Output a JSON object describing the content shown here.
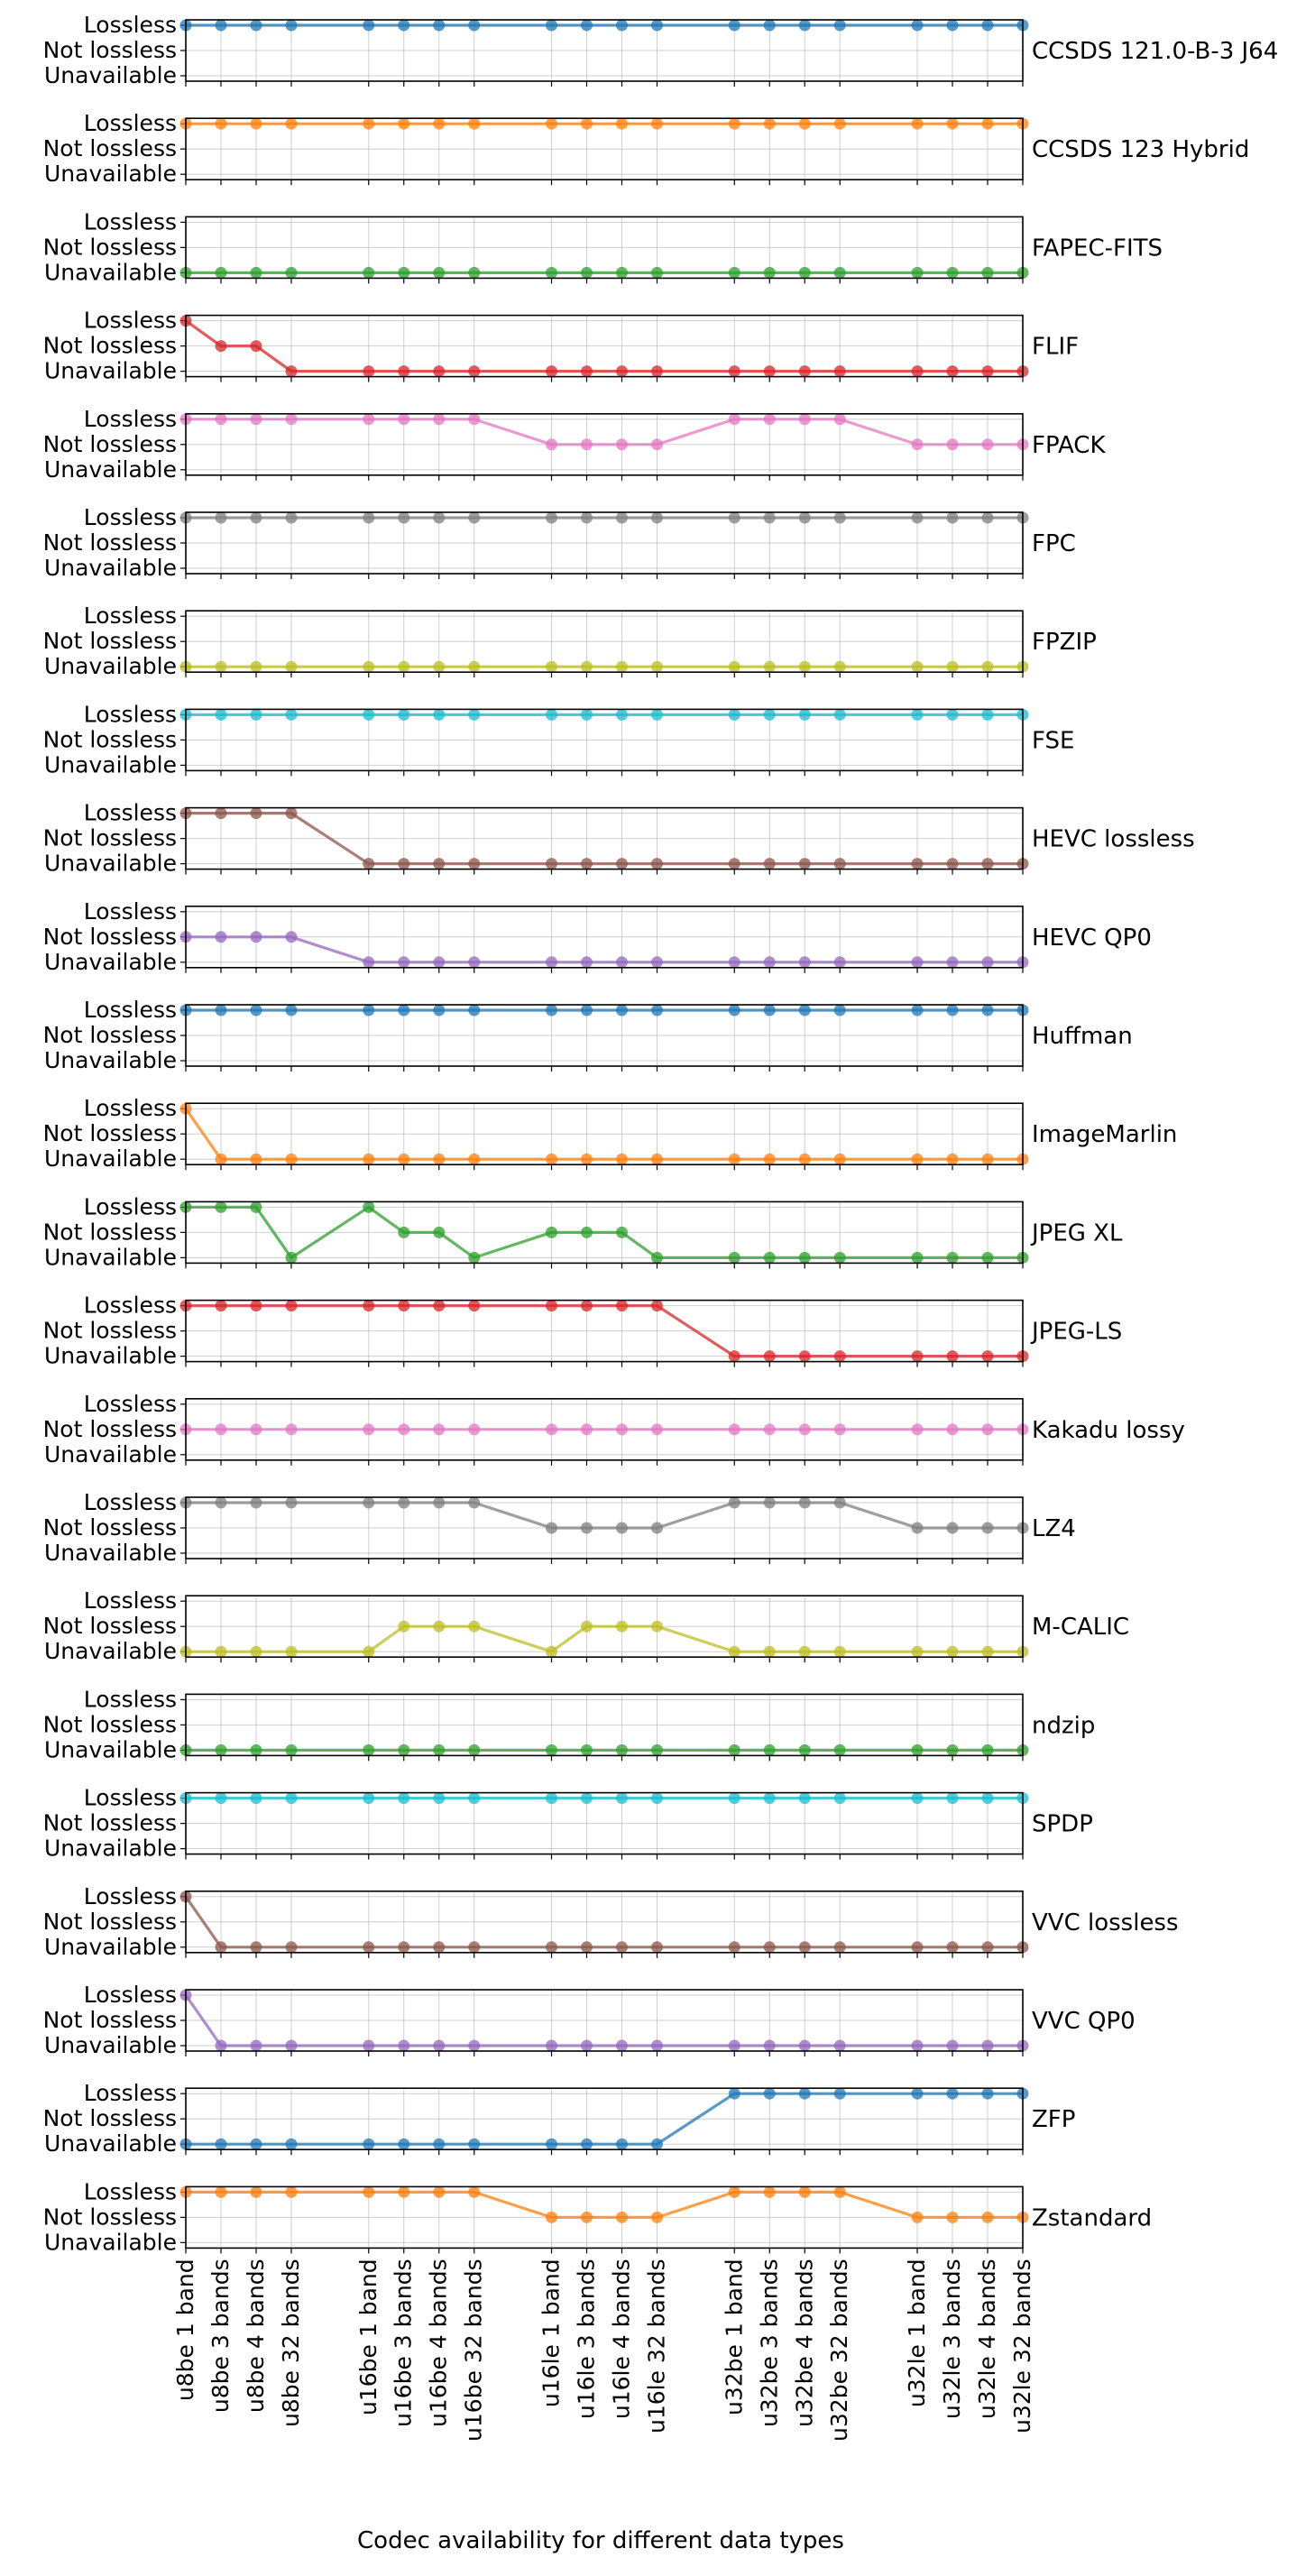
{
  "chart_data": {
    "type": "line",
    "xlabel": "Codec availability for different data types",
    "status_levels": [
      "Unavailable",
      "Not lossless",
      "Lossless"
    ],
    "ylim": [
      0,
      2
    ],
    "grid": true,
    "x": [
      "u8be 1 band",
      "u8be 3 bands",
      "u8be 4 bands",
      "u8be 32 bands",
      "u16be 1 band",
      "u16be 3 bands",
      "u16be 4 bands",
      "u16be 32 bands",
      "u16le 1 band",
      "u16le 3 bands",
      "u16le 4 bands",
      "u16le 32 bands",
      "u32be 1 band",
      "u32be 3 bands",
      "u32be 4 bands",
      "u32be 32 bands",
      "u32le 1 band",
      "u32le 3 bands",
      "u32le 4 bands",
      "u32le 32 bands"
    ],
    "series": [
      {
        "name": "CCSDS 121.0-B-3 J64",
        "color": "#1f77b4",
        "values": [
          2,
          2,
          2,
          2,
          2,
          2,
          2,
          2,
          2,
          2,
          2,
          2,
          2,
          2,
          2,
          2,
          2,
          2,
          2,
          2
        ]
      },
      {
        "name": "CCSDS 123 Hybrid",
        "color": "#ff7f0e",
        "values": [
          2,
          2,
          2,
          2,
          2,
          2,
          2,
          2,
          2,
          2,
          2,
          2,
          2,
          2,
          2,
          2,
          2,
          2,
          2,
          2
        ]
      },
      {
        "name": "FAPEC-FITS",
        "color": "#2ca02c",
        "values": [
          0,
          0,
          0,
          0,
          0,
          0,
          0,
          0,
          0,
          0,
          0,
          0,
          0,
          0,
          0,
          0,
          0,
          0,
          0,
          0
        ]
      },
      {
        "name": "FLIF",
        "color": "#d62728",
        "values": [
          2,
          1,
          1,
          0,
          0,
          0,
          0,
          0,
          0,
          0,
          0,
          0,
          0,
          0,
          0,
          0,
          0,
          0,
          0,
          0
        ]
      },
      {
        "name": "FPACK",
        "color": "#e377c2",
        "values": [
          2,
          2,
          2,
          2,
          2,
          2,
          2,
          2,
          1,
          1,
          1,
          1,
          2,
          2,
          2,
          2,
          1,
          1,
          1,
          1
        ]
      },
      {
        "name": "FPC",
        "color": "#7f7f7f",
        "values": [
          2,
          2,
          2,
          2,
          2,
          2,
          2,
          2,
          2,
          2,
          2,
          2,
          2,
          2,
          2,
          2,
          2,
          2,
          2,
          2
        ]
      },
      {
        "name": "FPZIP",
        "color": "#bcbd22",
        "values": [
          0,
          0,
          0,
          0,
          0,
          0,
          0,
          0,
          0,
          0,
          0,
          0,
          0,
          0,
          0,
          0,
          0,
          0,
          0,
          0
        ]
      },
      {
        "name": "FSE",
        "color": "#17becf",
        "values": [
          2,
          2,
          2,
          2,
          2,
          2,
          2,
          2,
          2,
          2,
          2,
          2,
          2,
          2,
          2,
          2,
          2,
          2,
          2,
          2
        ]
      },
      {
        "name": "HEVC lossless",
        "color": "#8c564b",
        "values": [
          2,
          2,
          2,
          2,
          0,
          0,
          0,
          0,
          0,
          0,
          0,
          0,
          0,
          0,
          0,
          0,
          0,
          0,
          0,
          0
        ]
      },
      {
        "name": "HEVC QP0",
        "color": "#9467bd",
        "values": [
          1,
          1,
          1,
          1,
          0,
          0,
          0,
          0,
          0,
          0,
          0,
          0,
          0,
          0,
          0,
          0,
          0,
          0,
          0,
          0
        ]
      },
      {
        "name": "Huffman",
        "color": "#1f77b4",
        "values": [
          2,
          2,
          2,
          2,
          2,
          2,
          2,
          2,
          2,
          2,
          2,
          2,
          2,
          2,
          2,
          2,
          2,
          2,
          2,
          2
        ]
      },
      {
        "name": "ImageMarlin",
        "color": "#ff7f0e",
        "values": [
          2,
          0,
          0,
          0,
          0,
          0,
          0,
          0,
          0,
          0,
          0,
          0,
          0,
          0,
          0,
          0,
          0,
          0,
          0,
          0
        ]
      },
      {
        "name": "JPEG XL",
        "color": "#2ca02c",
        "values": [
          2,
          2,
          2,
          0,
          2,
          1,
          1,
          0,
          1,
          1,
          1,
          0,
          0,
          0,
          0,
          0,
          0,
          0,
          0,
          0
        ]
      },
      {
        "name": "JPEG-LS",
        "color": "#d62728",
        "values": [
          2,
          2,
          2,
          2,
          2,
          2,
          2,
          2,
          2,
          2,
          2,
          2,
          0,
          0,
          0,
          0,
          0,
          0,
          0,
          0
        ]
      },
      {
        "name": "Kakadu lossy",
        "color": "#e377c2",
        "values": [
          1,
          1,
          1,
          1,
          1,
          1,
          1,
          1,
          1,
          1,
          1,
          1,
          1,
          1,
          1,
          1,
          1,
          1,
          1,
          1
        ]
      },
      {
        "name": "LZ4",
        "color": "#7f7f7f",
        "values": [
          2,
          2,
          2,
          2,
          2,
          2,
          2,
          2,
          1,
          1,
          1,
          1,
          2,
          2,
          2,
          2,
          1,
          1,
          1,
          1
        ]
      },
      {
        "name": "M-CALIC",
        "color": "#bcbd22",
        "values": [
          0,
          0,
          0,
          0,
          0,
          1,
          1,
          1,
          0,
          1,
          1,
          1,
          0,
          0,
          0,
          0,
          0,
          0,
          0,
          0
        ]
      },
      {
        "name": "ndzip",
        "color": "#2ca02c",
        "values": [
          0,
          0,
          0,
          0,
          0,
          0,
          0,
          0,
          0,
          0,
          0,
          0,
          0,
          0,
          0,
          0,
          0,
          0,
          0,
          0
        ]
      },
      {
        "name": "SPDP",
        "color": "#17becf",
        "values": [
          2,
          2,
          2,
          2,
          2,
          2,
          2,
          2,
          2,
          2,
          2,
          2,
          2,
          2,
          2,
          2,
          2,
          2,
          2,
          2
        ]
      },
      {
        "name": "VVC lossless",
        "color": "#8c564b",
        "values": [
          2,
          0,
          0,
          0,
          0,
          0,
          0,
          0,
          0,
          0,
          0,
          0,
          0,
          0,
          0,
          0,
          0,
          0,
          0,
          0
        ]
      },
      {
        "name": "VVC QP0",
        "color": "#9467bd",
        "values": [
          2,
          0,
          0,
          0,
          0,
          0,
          0,
          0,
          0,
          0,
          0,
          0,
          0,
          0,
          0,
          0,
          0,
          0,
          0,
          0
        ]
      },
      {
        "name": "ZFP",
        "color": "#1f77b4",
        "values": [
          0,
          0,
          0,
          0,
          0,
          0,
          0,
          0,
          0,
          0,
          0,
          0,
          2,
          2,
          2,
          2,
          2,
          2,
          2,
          2
        ]
      },
      {
        "name": "Zstandard",
        "color": "#ff7f0e",
        "values": [
          2,
          2,
          2,
          2,
          2,
          2,
          2,
          2,
          1,
          1,
          1,
          1,
          2,
          2,
          2,
          2,
          1,
          1,
          1,
          1
        ]
      }
    ]
  }
}
